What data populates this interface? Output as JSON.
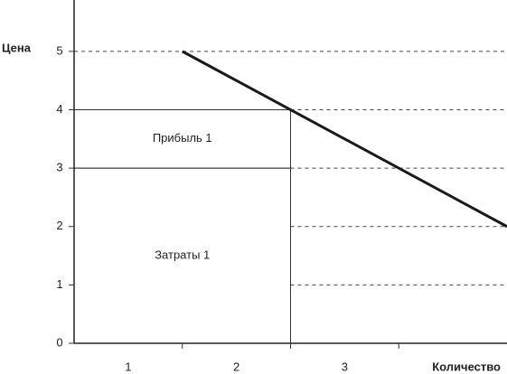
{
  "chart_data": {
    "type": "line",
    "y_label": "Цена",
    "x_label": "Количество",
    "categories": [
      "1",
      "2",
      "3"
    ],
    "xlim": [
      0,
      4
    ],
    "ylim": [
      0,
      5.88
    ],
    "yticks": [
      0,
      1,
      2,
      3,
      4,
      5
    ],
    "grid": true,
    "series": [
      {
        "color": "#1a1a1a",
        "x": [
          1,
          4
        ],
        "values": [
          5,
          2
        ]
      }
    ],
    "regions": [
      {
        "label": "Прибыль 1",
        "x": [
          0,
          2
        ],
        "y": [
          3,
          4
        ]
      },
      {
        "label": "Затраты 1",
        "x": [
          0,
          2
        ],
        "y": [
          0,
          3
        ]
      }
    ]
  }
}
